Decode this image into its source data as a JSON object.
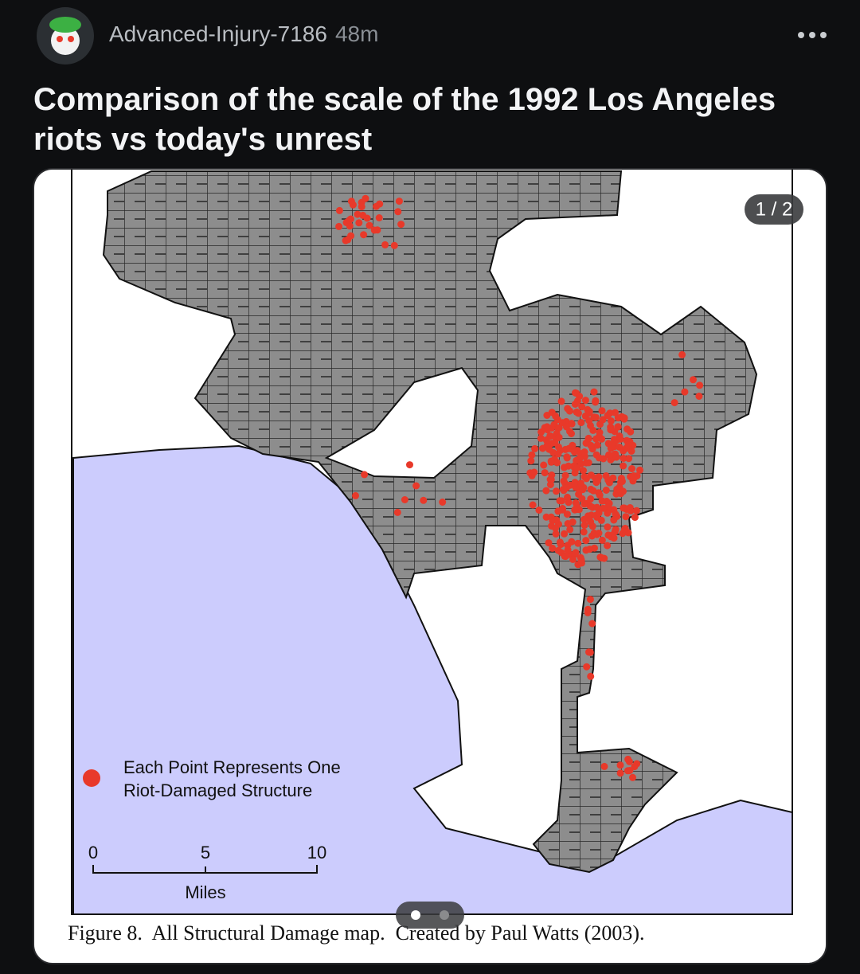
{
  "post": {
    "author": "Advanced-Injury-7186",
    "age": "48m",
    "title": "Comparison of the scale of the 1992 Los Angeles riots vs today's unrest"
  },
  "image": {
    "counter": "1 / 2",
    "legend": [
      "Each Point Represents One",
      "Riot-Damaged Structure"
    ],
    "scale": {
      "ticks": [
        "0",
        "5",
        "10"
      ],
      "unit": "Miles"
    },
    "caption": "Figure 8.  All Structural Damage map.  Created by Paul Watts (2003)."
  }
}
